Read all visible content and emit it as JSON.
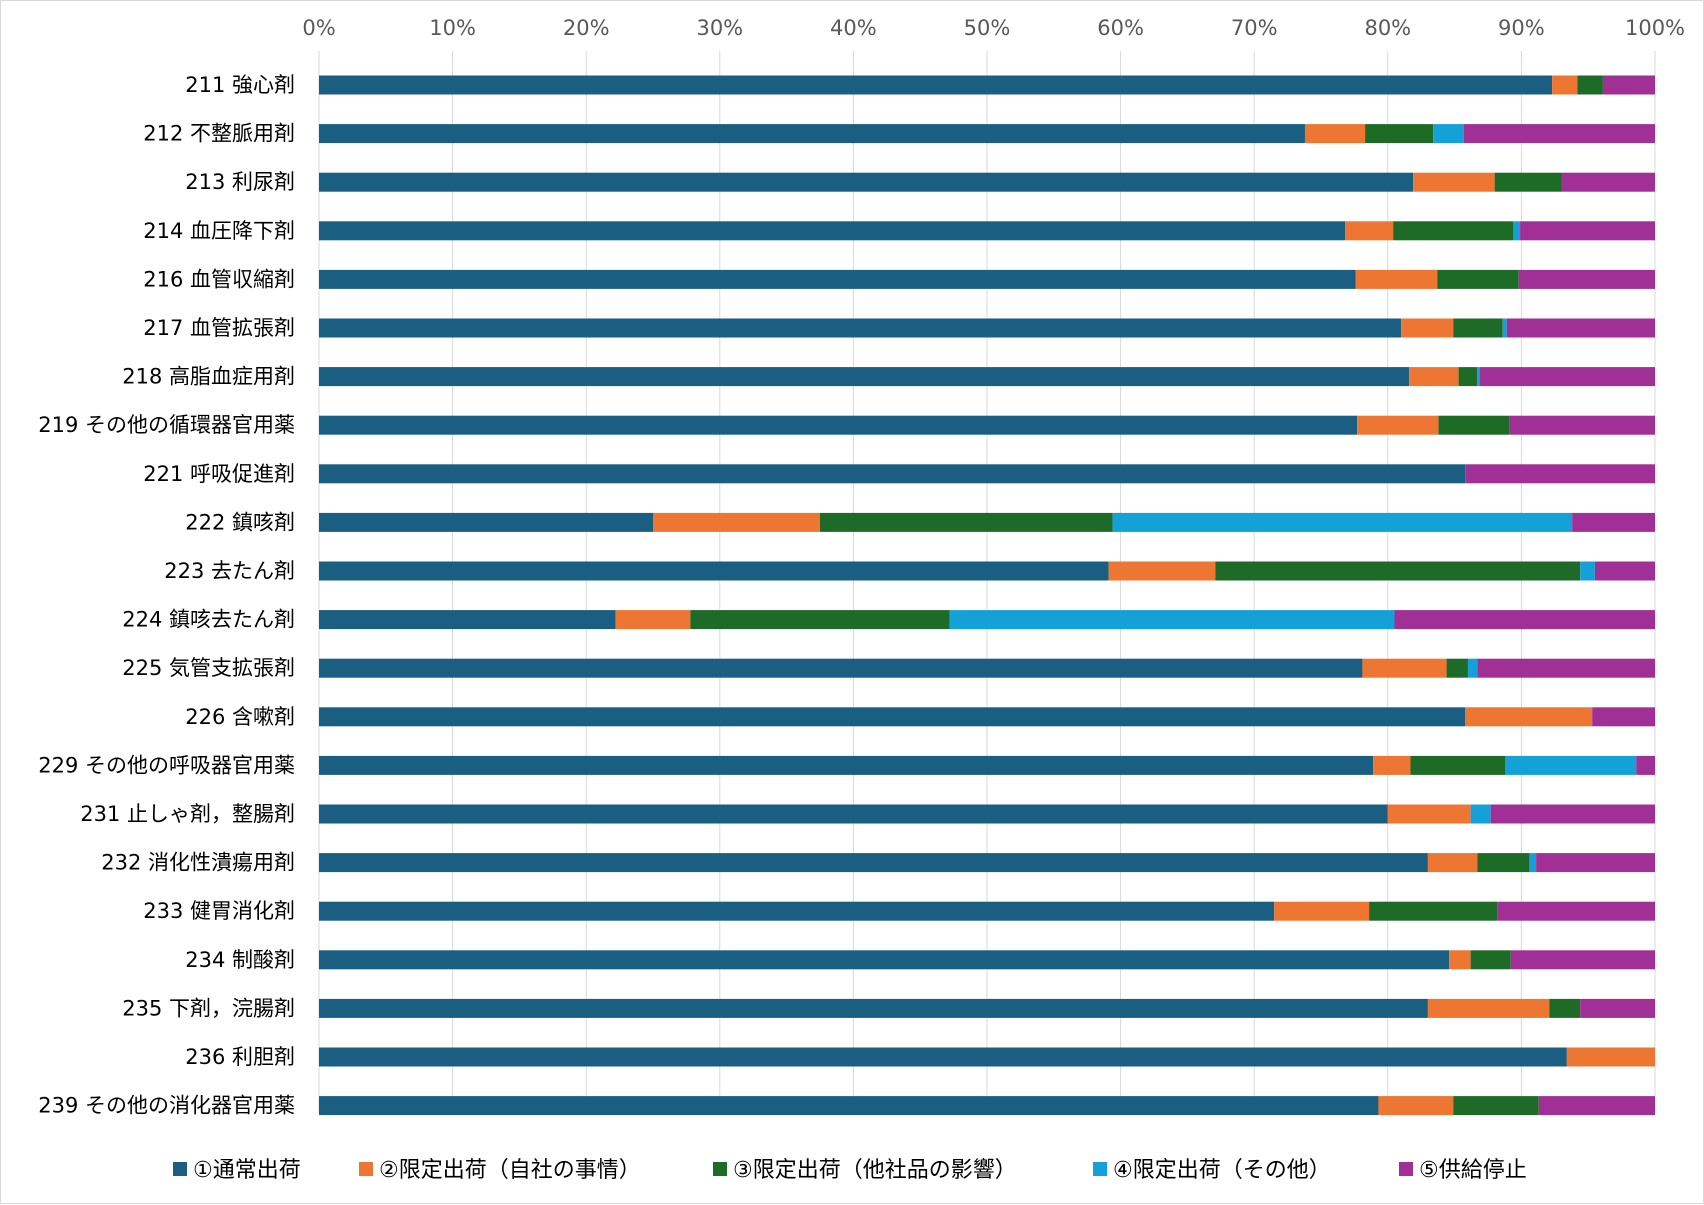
{
  "chart_data": {
    "type": "bar",
    "orientation": "horizontal",
    "stacked": "percent",
    "xlim": [
      0,
      100
    ],
    "x_ticks": [
      "0%",
      "10%",
      "20%",
      "30%",
      "40%",
      "50%",
      "60%",
      "70%",
      "80%",
      "90%",
      "100%"
    ],
    "x_axis_position": "top",
    "grid": true,
    "legend_position": "bottom",
    "categories": [
      "211 強心剤",
      "212 不整脈用剤",
      "213 利尿剤",
      "214 血圧降下剤",
      "216 血管収縮剤",
      "217 血管拡張剤",
      "218 高脂血症用剤",
      "219 その他の循環器官用薬",
      "221 呼吸促進剤",
      "222 鎮咳剤",
      "223 去たん剤",
      "224 鎮咳去たん剤",
      "225 気管支拡張剤",
      "226 含嗽剤",
      "229 その他の呼吸器官用薬",
      "231 止しゃ剤，整腸剤",
      "232 消化性潰瘍用剤",
      "233 健胃消化剤",
      "234 制酸剤",
      "235 下剤，浣腸剤",
      "236 利胆剤",
      "239 その他の消化器官用薬"
    ],
    "series": [
      {
        "name": "①通常出荷",
        "color": "#1a5f82",
        "values": [
          92.3,
          73.8,
          81.9,
          76.8,
          77.6,
          81.0,
          81.6,
          77.7,
          85.8,
          25.0,
          59.1,
          22.2,
          78.1,
          85.8,
          78.9,
          80.0,
          83.0,
          71.5,
          84.6,
          83.0,
          93.4,
          79.3
        ]
      },
      {
        "name": "②限定出荷（自社の事情）",
        "color": "#ed7633",
        "values": [
          1.9,
          4.5,
          6.1,
          3.6,
          6.1,
          3.9,
          3.7,
          6.1,
          0,
          12.5,
          8.0,
          5.6,
          6.3,
          9.5,
          2.8,
          6.2,
          3.7,
          7.1,
          1.6,
          9.1,
          6.6,
          5.6
        ]
      },
      {
        "name": "③限定出荷（他社品の影響）",
        "color": "#1e6b27",
        "values": [
          1.9,
          5.1,
          5.0,
          9.0,
          6.1,
          3.7,
          1.4,
          5.3,
          0,
          21.9,
          27.3,
          19.4,
          1.6,
          0,
          7.1,
          0,
          3.9,
          9.6,
          3.0,
          2.3,
          0,
          6.4
        ]
      },
      {
        "name": "④限定出荷（その他）",
        "color": "#13a1d8",
        "values": [
          0,
          2.3,
          0,
          0.5,
          0,
          0.3,
          0.2,
          0,
          0,
          34.4,
          1.1,
          33.3,
          0.7,
          0,
          9.8,
          1.5,
          0.5,
          0,
          0,
          0,
          0,
          0
        ]
      },
      {
        "name": "⑤供給停止",
        "color": "#a02f96",
        "values": [
          3.9,
          14.3,
          7.0,
          10.1,
          10.2,
          11.1,
          13.1,
          10.9,
          14.2,
          6.2,
          4.5,
          19.5,
          13.3,
          4.7,
          1.4,
          12.3,
          8.9,
          11.8,
          10.8,
          5.6,
          0,
          8.7
        ]
      }
    ]
  }
}
